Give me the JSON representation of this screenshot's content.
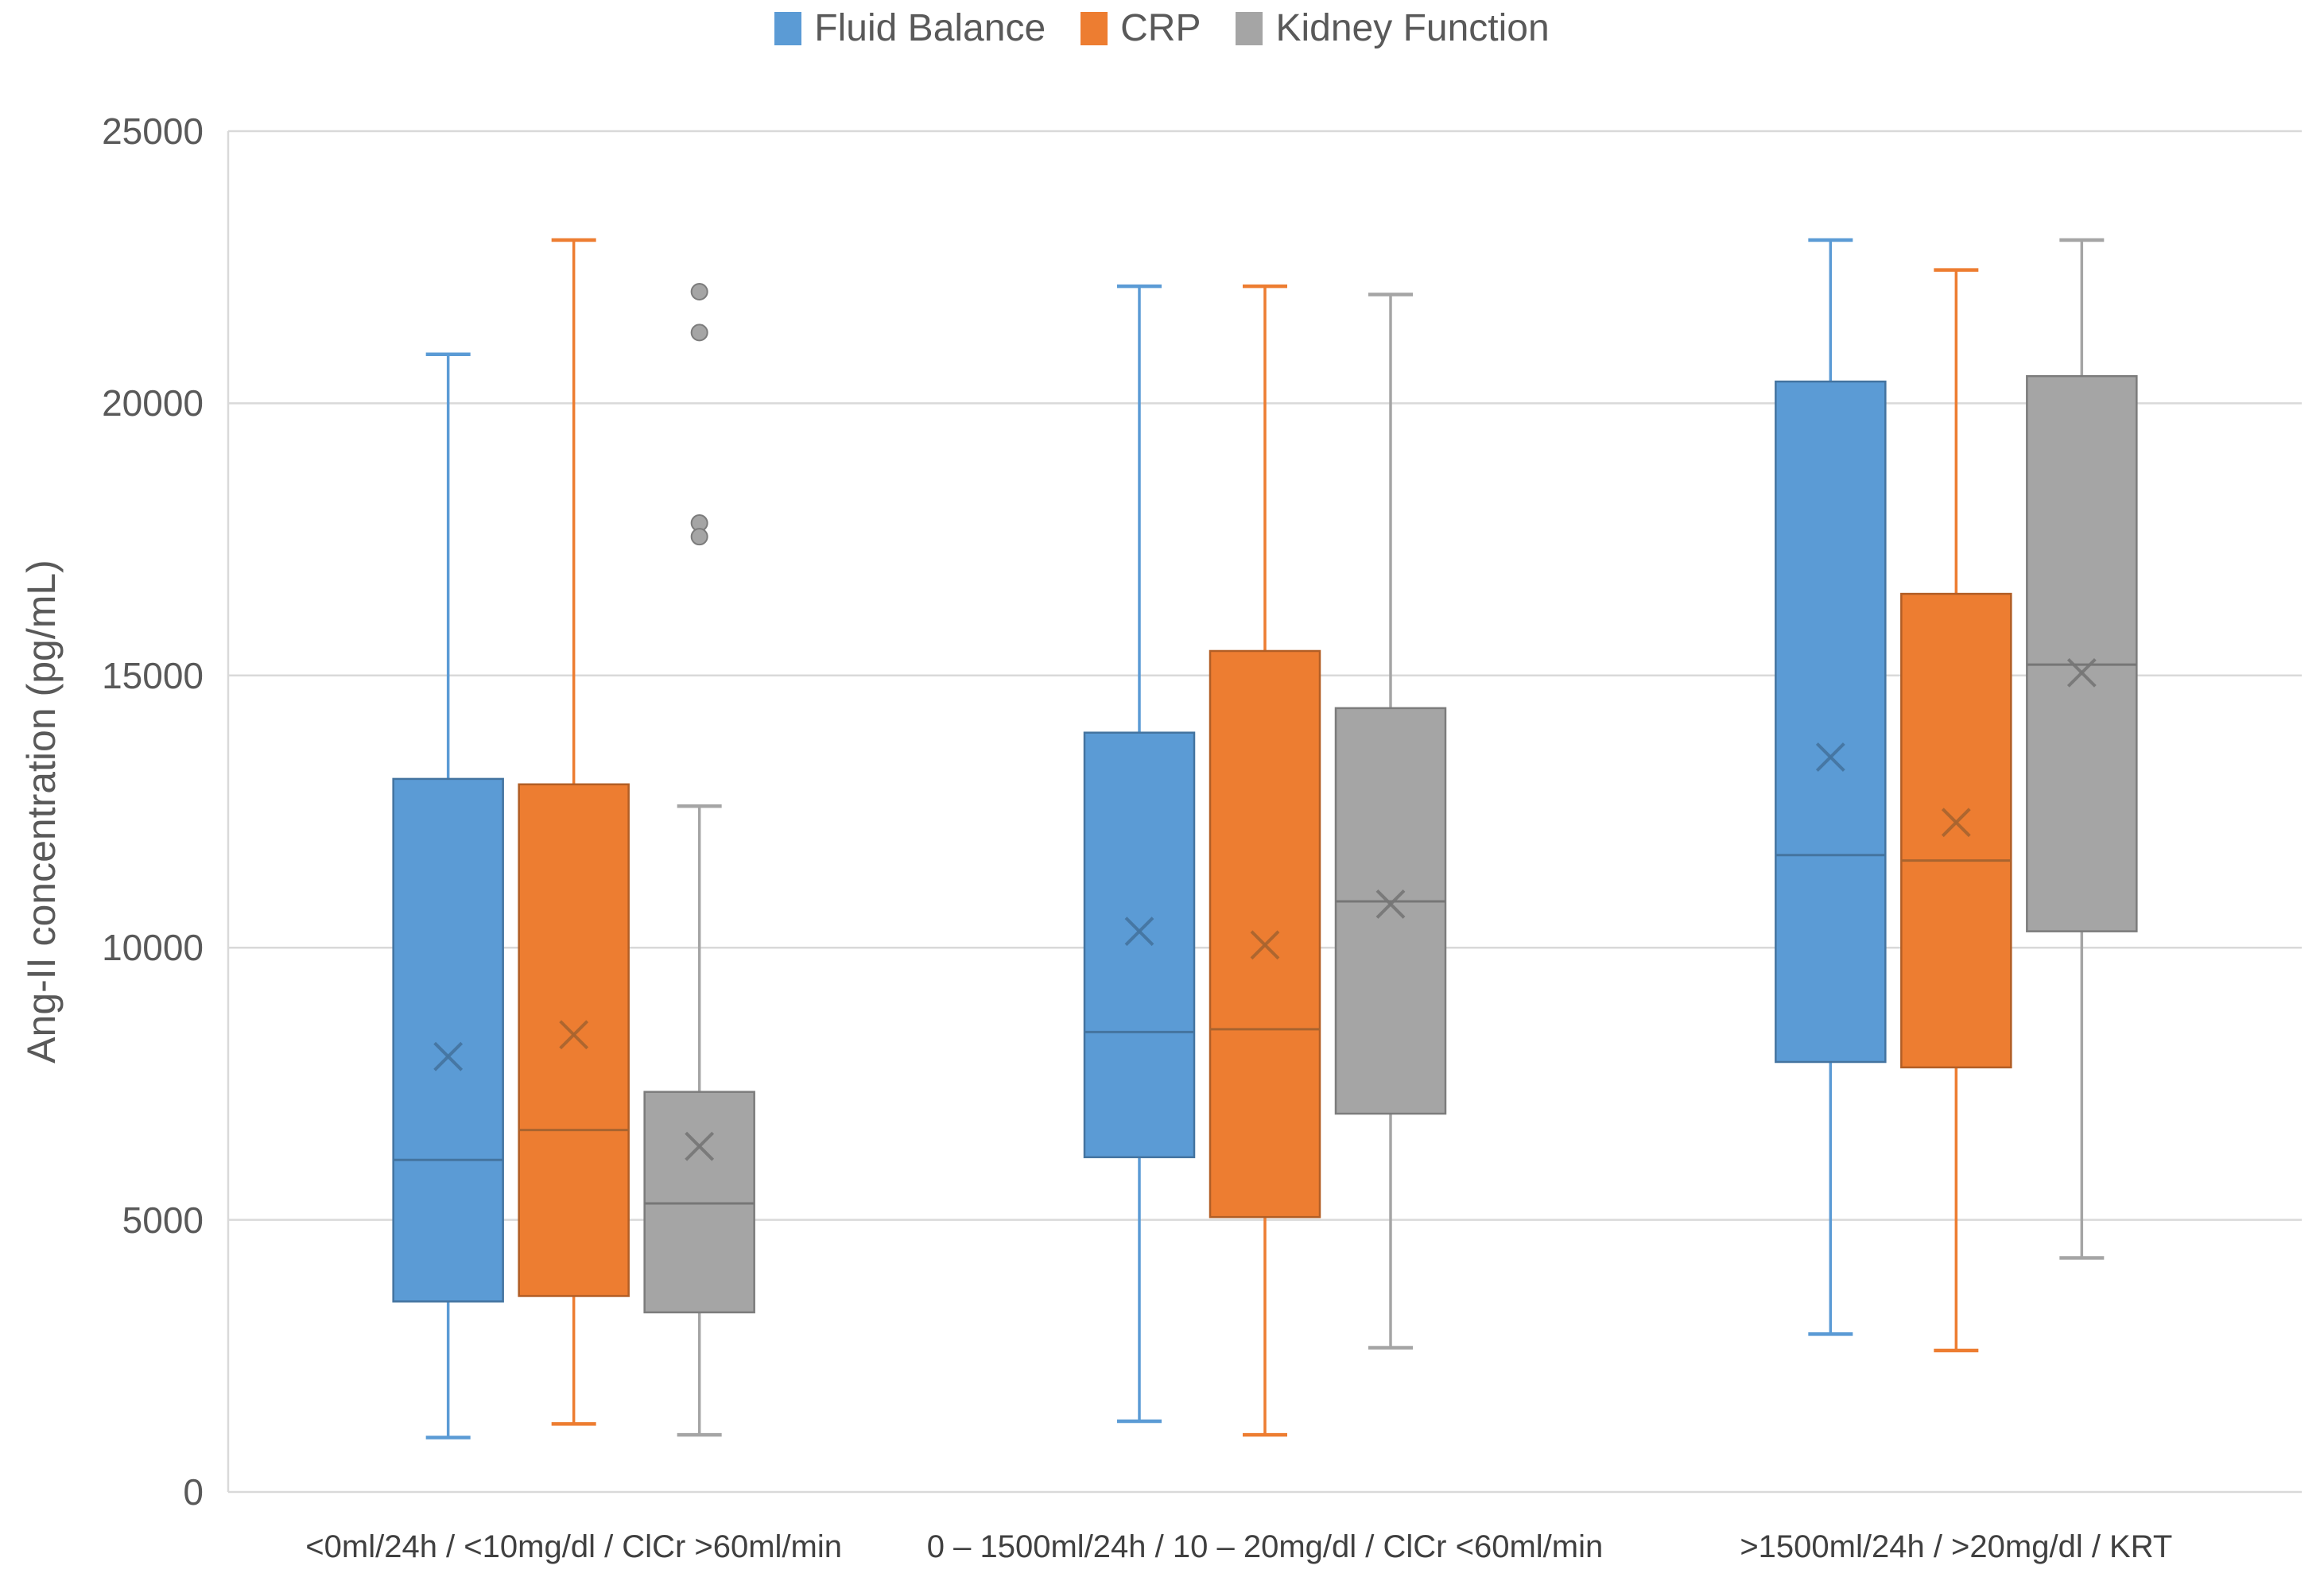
{
  "chart_data": {
    "type": "boxplot",
    "title": "",
    "ylabel": "Ang-II concentration (pg/mL)",
    "xlabel": "",
    "ylim": [
      0,
      25000
    ],
    "yticks": [
      0,
      5000,
      10000,
      15000,
      20000,
      25000
    ],
    "ytick_labels": [
      "0",
      "5000",
      "10000",
      "15000",
      "20000",
      "25000"
    ],
    "grid": true,
    "legend_position": "top-center",
    "categories": [
      "<0ml/24h / <10mg/dl / ClCr >60ml/min",
      "0 – 1500ml/24h / 10 – 20mg/dl / ClCr <60ml/min",
      ">1500ml/24h / >20mg/dl / KRT"
    ],
    "series": [
      {
        "name": "Fluid Balance",
        "color": "#5B9BD5",
        "border": "#4474A0",
        "marker_color": "#44749F",
        "boxes": [
          {
            "low": 1000,
            "q1": 3500,
            "median": 6100,
            "q3": 13100,
            "high": 20900,
            "mean": 8000,
            "outliers": []
          },
          {
            "low": 1300,
            "q1": 6150,
            "median": 8450,
            "q3": 13950,
            "high": 22150,
            "mean": 10300,
            "outliers": []
          },
          {
            "low": 2900,
            "q1": 7900,
            "median": 11700,
            "q3": 20400,
            "high": 23000,
            "mean": 13500,
            "outliers": []
          }
        ]
      },
      {
        "name": "CRP",
        "color": "#ED7D31",
        "border": "#B25E25",
        "marker_color": "#A8642F",
        "boxes": [
          {
            "low": 1250,
            "q1": 3600,
            "median": 6650,
            "q3": 13000,
            "high": 23000,
            "mean": 8400,
            "outliers": []
          },
          {
            "low": 1050,
            "q1": 5050,
            "median": 8500,
            "q3": 15450,
            "high": 22150,
            "mean": 10050,
            "outliers": []
          },
          {
            "low": 2600,
            "q1": 7800,
            "median": 11600,
            "q3": 16500,
            "high": 22450,
            "mean": 12300,
            "outliers": []
          }
        ]
      },
      {
        "name": "Kidney Function",
        "color": "#A5A5A5",
        "border": "#7C7C7C",
        "marker_color": "#767676",
        "boxes": [
          {
            "low": 1050,
            "q1": 3300,
            "median": 5300,
            "q3": 7350,
            "high": 12600,
            "mean": 6350,
            "outliers": [
              22050,
              21300,
              17800,
              17550
            ]
          },
          {
            "low": 2650,
            "q1": 6950,
            "median": 10850,
            "q3": 14400,
            "high": 22000,
            "mean": 10800,
            "outliers": []
          },
          {
            "low": 4300,
            "q1": 10300,
            "median": 15200,
            "q3": 20500,
            "high": 23000,
            "mean": 15050,
            "outliers": []
          }
        ]
      }
    ],
    "colors": {
      "gridline": "#D9D9D9",
      "axis_line": "#D9D9D9",
      "ytick_text": "#595959",
      "xlabel_text": "#404040",
      "legend_text": "#595959"
    }
  }
}
